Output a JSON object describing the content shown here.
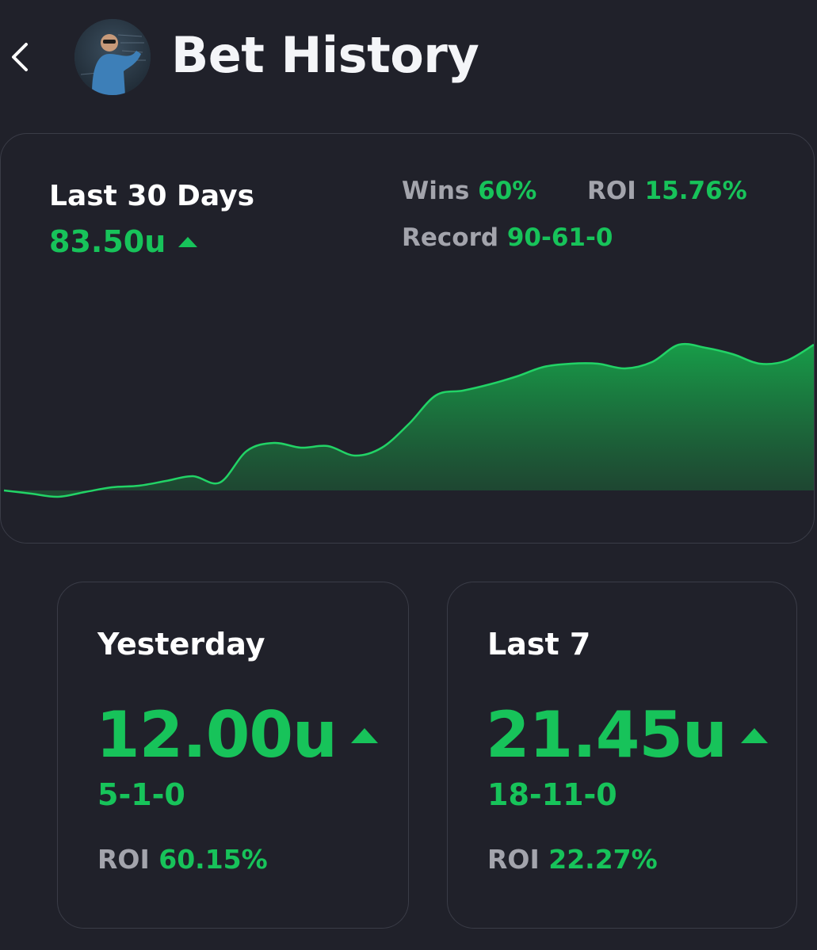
{
  "header": {
    "title": "Bet History",
    "back_icon": "chevron-left-icon",
    "avatar_icon": "user-avatar"
  },
  "summary": {
    "period": "Last 30 Days",
    "units": "83.50u",
    "wins_label": "Wins",
    "wins_value": "60%",
    "roi_label": "ROI",
    "roi_value": "15.76%",
    "record_label": "Record",
    "record_value": "90-61-0"
  },
  "cards": [
    {
      "title": "Yesterday",
      "units": "12.00u",
      "record": "5-1-0",
      "roi_label": "ROI",
      "roi_value": "60.15%"
    },
    {
      "title": "Last 7",
      "units": "21.45u",
      "record": "18-11-0",
      "roi_label": "ROI",
      "roi_value": "22.27%"
    }
  ],
  "chart_data": {
    "type": "area",
    "x": [
      0,
      1,
      2,
      3,
      4,
      5,
      6,
      7,
      8,
      9,
      10,
      11,
      12,
      13,
      14,
      15,
      16,
      17,
      18,
      19,
      20,
      21,
      22,
      23,
      24,
      25,
      26,
      27,
      28,
      29,
      30
    ],
    "values": [
      0,
      -2,
      -4,
      -1,
      2,
      3,
      6,
      9,
      5,
      25,
      30,
      27,
      28,
      22,
      27,
      42,
      60,
      63,
      67,
      72,
      78,
      80,
      80,
      77,
      81,
      92,
      90,
      86,
      80,
      82,
      92
    ],
    "baseline": 0,
    "ylim": [
      -10,
      100
    ],
    "grid": false,
    "colors": {
      "line": "#22d366",
      "fill_top": "#17a34a",
      "fill_bottom": "#1e4f33"
    }
  },
  "colors": {
    "background": "#20212a",
    "accent_green": "#17c35a",
    "muted_label": "#a3a4ac",
    "card_border": "#3a3c47"
  }
}
